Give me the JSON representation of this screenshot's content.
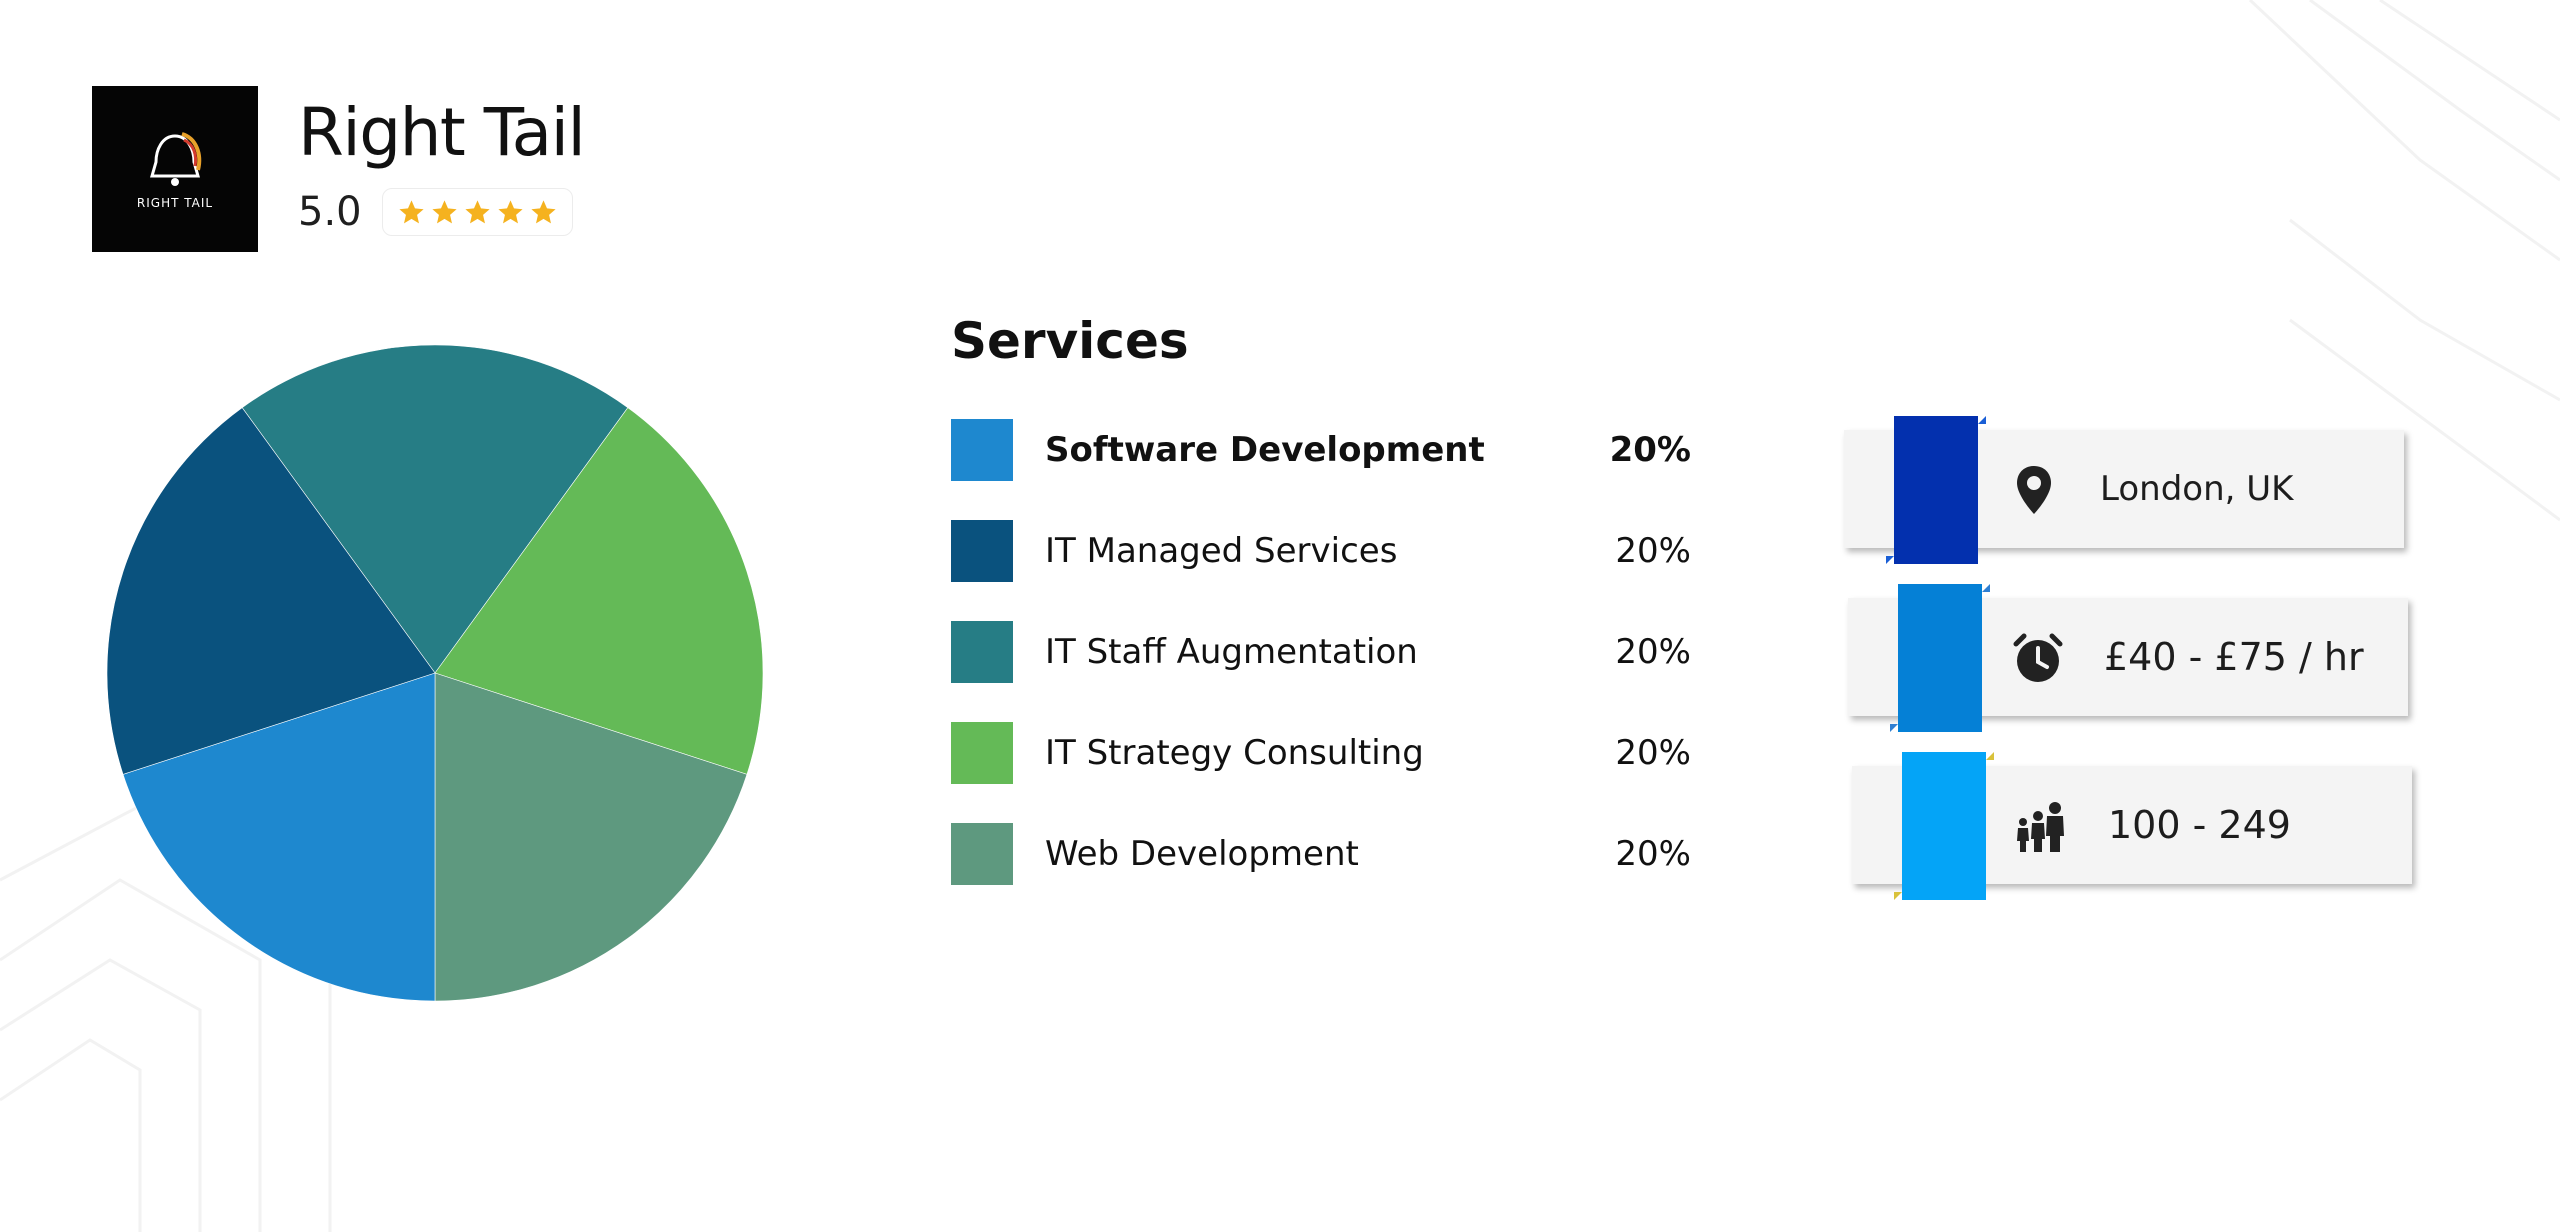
{
  "company": {
    "name": "Right Tail",
    "logo_text": "RIGHT TAIL",
    "rating": "5.0",
    "stars": 5,
    "star_color": "#F5B21F"
  },
  "services": {
    "title": "Services",
    "items": [
      {
        "label": "Software Development",
        "percent": "20%",
        "color": "#1E88CF",
        "active": true
      },
      {
        "label": "IT Managed Services",
        "percent": "20%",
        "color": "#0A527E",
        "active": false
      },
      {
        "label": "IT Staff Augmentation",
        "percent": "20%",
        "color": "#267D85",
        "active": false
      },
      {
        "label": "IT Strategy Consulting",
        "percent": "20%",
        "color": "#64BA57",
        "active": false
      },
      {
        "label": "Web Development",
        "percent": "20%",
        "color": "#5E997F",
        "active": false
      }
    ]
  },
  "chart_data": {
    "type": "pie",
    "categories": [
      "IT Staff Augmentation",
      "IT Strategy Consulting",
      "Web Development",
      "Software Development",
      "IT Managed Services"
    ],
    "values": [
      20,
      20,
      20,
      20,
      20
    ],
    "colors": [
      "#267D85",
      "#64BA57",
      "#5E997F",
      "#1E88CF",
      "#0A527E"
    ]
  },
  "info_cards": [
    {
      "icon": "location-pin-icon",
      "text": "London, UK",
      "tab_color": "#0330AE",
      "fold_color": "#1A5FD6"
    },
    {
      "icon": "alarm-clock-icon",
      "text": "£40 - £75 / hr",
      "tab_color": "#0580D6",
      "fold_color": "#2F7FD2"
    },
    {
      "icon": "people-group-icon",
      "text": "100 - 249",
      "tab_color": "#04A4F7",
      "fold_color": "#D9C23B"
    }
  ]
}
